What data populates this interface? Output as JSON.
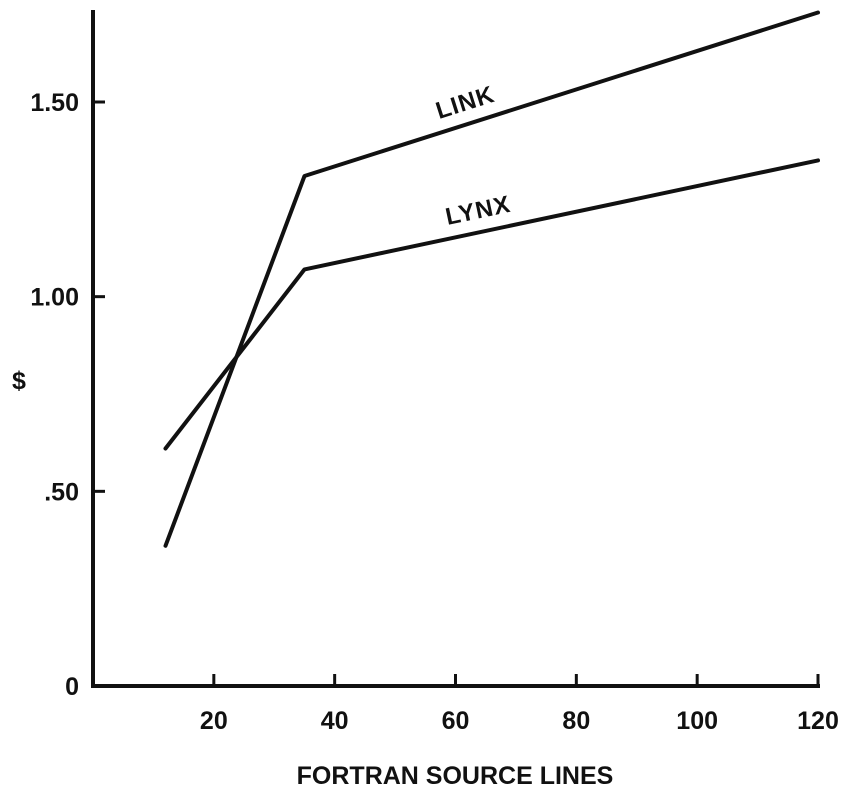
{
  "chart_data": {
    "type": "line",
    "title": "",
    "xlabel": "FORTRAN SOURCE LINES",
    "ylabel": "$",
    "xlim": [
      0,
      120
    ],
    "ylim": [
      0,
      1.75
    ],
    "grid": false,
    "legend": "inline labels",
    "x_ticks": [
      {
        "value": 20,
        "label": "20"
      },
      {
        "value": 40,
        "label": "40"
      },
      {
        "value": 60,
        "label": "60"
      },
      {
        "value": 80,
        "label": "80"
      },
      {
        "value": 100,
        "label": "100"
      },
      {
        "value": 120,
        "label": "120"
      }
    ],
    "y_ticks": [
      {
        "value": 0,
        "label": "0"
      },
      {
        "value": 0.5,
        "label": ".50"
      },
      {
        "value": 1.0,
        "label": "1.00"
      },
      {
        "value": 1.5,
        "label": "1.50"
      }
    ],
    "series": [
      {
        "name": "LINK",
        "points": [
          {
            "x": 12,
            "y": 0.36
          },
          {
            "x": 35,
            "y": 1.31
          },
          {
            "x": 120,
            "y": 1.73
          }
        ]
      },
      {
        "name": "LYNX",
        "points": [
          {
            "x": 12,
            "y": 0.61
          },
          {
            "x": 35,
            "y": 1.07
          },
          {
            "x": 120,
            "y": 1.35
          }
        ]
      }
    ]
  }
}
